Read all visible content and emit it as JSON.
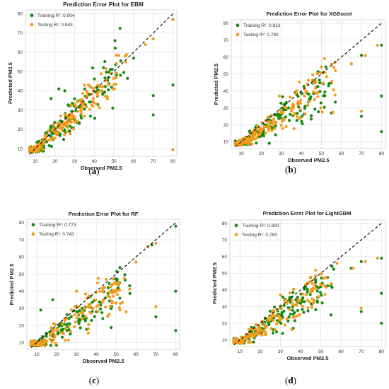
{
  "captions": [
    "(a)",
    "(b)",
    "(c)",
    "(d)"
  ],
  "chart_data": [
    {
      "type": "scatter",
      "title": "Prediction Error Plot for EBM",
      "xlabel": "Observed PM2.5",
      "ylabel": "Predicted PM2.5",
      "xlim": [
        5,
        82
      ],
      "ylim": [
        6,
        82
      ],
      "xticks": [
        10,
        20,
        30,
        40,
        50,
        60,
        70,
        80
      ],
      "yticks": [
        10,
        20,
        30,
        40,
        50,
        60,
        70,
        80
      ],
      "grid": true,
      "legend_position": "top-left",
      "identity_line": [
        [
          7,
          7
        ],
        [
          80,
          80
        ]
      ],
      "series": [
        {
          "name": "Training R²: 0.904",
          "color": "#138a13",
          "seed": 11,
          "spread": 0.26,
          "bias": 0.97,
          "outliers": [
            [
              80,
              77
            ],
            [
              80,
              43
            ],
            [
              70,
              37.5
            ],
            [
              70,
              27.5
            ],
            [
              18,
              36
            ],
            [
              22,
              41
            ],
            [
              25,
              40
            ],
            [
              60,
              57
            ]
          ]
        },
        {
          "name": "Testing R²: 0.843",
          "color": "#f59a1b",
          "seed": 23,
          "spread": 0.18,
          "bias": 0.99,
          "outliers": [
            [
              80,
              77
            ],
            [
              80,
              9.5
            ],
            [
              70,
              67
            ],
            [
              66,
              64
            ],
            [
              56,
              55
            ],
            [
              35,
              43
            ],
            [
              37,
              43
            ]
          ]
        }
      ]
    },
    {
      "type": "scatter",
      "title": "Prediction Error Plot for XGBoost",
      "xlabel": "Observed PM2.5",
      "ylabel": "Predicted PM2.5",
      "xlim": [
        5,
        82
      ],
      "ylim": [
        6,
        82
      ],
      "xticks": [
        10,
        20,
        30,
        40,
        50,
        60,
        70,
        80
      ],
      "yticks": [
        10,
        20,
        30,
        40,
        50,
        60,
        70,
        80
      ],
      "grid": true,
      "legend_position": "top-left",
      "identity_line": [
        [
          7,
          7
        ],
        [
          80,
          80
        ]
      ],
      "series": [
        {
          "name": "Training R²: 0.813",
          "color": "#138a13",
          "seed": 31,
          "spread": 0.24,
          "bias": 0.88,
          "outliers": [
            [
              80,
              67
            ],
            [
              80,
              37
            ],
            [
              80,
              16
            ],
            [
              70,
              25
            ],
            [
              70,
              61
            ],
            [
              65,
              56
            ],
            [
              55,
              27
            ]
          ]
        },
        {
          "name": "Testing R²: 0.782",
          "color": "#f59a1b",
          "seed": 47,
          "spread": 0.2,
          "bias": 0.92,
          "outliers": [
            [
              78,
              67
            ],
            [
              72,
              61
            ],
            [
              70,
              28
            ],
            [
              65,
              56
            ],
            [
              57,
              52
            ],
            [
              29,
              37
            ]
          ]
        }
      ]
    },
    {
      "type": "scatter",
      "title": "Prediction Error Plot for RF",
      "xlabel": "Observed PM2.5",
      "ylabel": "Predicted PM2.5",
      "xlim": [
        5,
        82
      ],
      "ylim": [
        6,
        82
      ],
      "xticks": [
        10,
        20,
        30,
        40,
        50,
        60,
        70,
        80
      ],
      "yticks": [
        10,
        20,
        30,
        40,
        50,
        60,
        70,
        80
      ],
      "grid": true,
      "legend_position": "top-left",
      "identity_line": [
        [
          7,
          7
        ],
        [
          80,
          80
        ]
      ],
      "series": [
        {
          "name": "Training R²: 0.773",
          "color": "#138a13",
          "seed": 53,
          "spread": 0.22,
          "bias": 0.85,
          "outliers": [
            [
              80,
              78
            ],
            [
              80,
              40
            ],
            [
              80,
              17
            ],
            [
              70,
              25
            ],
            [
              68,
              67
            ],
            [
              18,
              35
            ],
            [
              12,
              29
            ]
          ]
        },
        {
          "name": "Testing R²: 0.743",
          "color": "#f59a1b",
          "seed": 67,
          "spread": 0.24,
          "bias": 0.86,
          "outliers": [
            [
              70,
              68
            ],
            [
              70,
              31
            ],
            [
              66,
              66
            ],
            [
              60,
              57
            ],
            [
              55,
              28
            ],
            [
              30,
              40
            ]
          ]
        }
      ]
    },
    {
      "type": "scatter",
      "title": "Prediction Error Plot for LightGBM",
      "xlabel": "Observed PM2.5",
      "ylabel": "Predicted PM2.5",
      "xlim": [
        5,
        82
      ],
      "ylim": [
        6,
        82
      ],
      "xticks": [
        10,
        20,
        30,
        40,
        50,
        60,
        70,
        80
      ],
      "yticks": [
        10,
        20,
        30,
        40,
        50,
        60,
        70,
        80
      ],
      "grid": true,
      "legend_position": "top-left",
      "identity_line": [
        [
          7,
          7
        ],
        [
          80,
          80
        ]
      ],
      "series": [
        {
          "name": "Training R²: 0.800",
          "color": "#138a13",
          "seed": 71,
          "spread": 0.2,
          "bias": 0.86,
          "outliers": [
            [
              80,
              59
            ],
            [
              80,
              38
            ],
            [
              80,
              20
            ],
            [
              70,
              57
            ],
            [
              70,
              27
            ],
            [
              65,
              53
            ],
            [
              55,
              25
            ]
          ]
        },
        {
          "name": "Testing R²: 0.783",
          "color": "#f59a1b",
          "seed": 89,
          "spread": 0.22,
          "bias": 0.88,
          "outliers": [
            [
              78,
              59
            ],
            [
              72,
              57
            ],
            [
              70,
              29
            ],
            [
              66,
              53
            ],
            [
              58,
              56
            ],
            [
              30,
              37
            ]
          ]
        }
      ]
    }
  ]
}
